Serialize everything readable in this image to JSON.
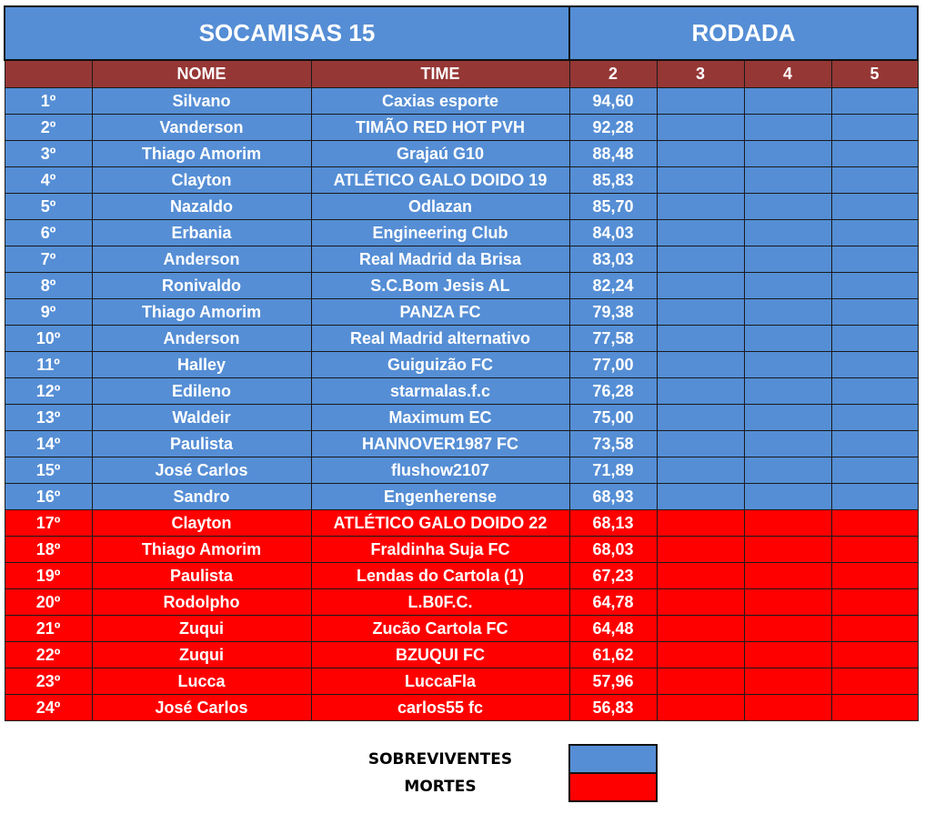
{
  "title": "SOCAMISAS 15",
  "rodada_label": "RODADA",
  "headers": [
    "",
    "NOME",
    "TIME",
    "2",
    "3",
    "4",
    "5"
  ],
  "colors": {
    "survivor": "#558ed5",
    "death": "#ff0000",
    "header": "#953735"
  },
  "rows": [
    [
      "1º",
      "Silvano",
      "Caxias esporte",
      "94,60"
    ],
    [
      "2º",
      "Vanderson",
      "TIMÃO RED HOT PVH",
      "92,28"
    ],
    [
      "3º",
      "Thiago Amorim",
      "Grajaú G10",
      "88,48"
    ],
    [
      "4º",
      "Clayton",
      "ATLÉTICO GALO DOIDO 19",
      "85,83"
    ],
    [
      "5º",
      "Nazaldo",
      "Odlazan",
      "85,70"
    ],
    [
      "6º",
      "Erbania",
      "Engineering Club",
      "84,03"
    ],
    [
      "7º",
      "Anderson",
      "Real Madrid da Brisa",
      "83,03"
    ],
    [
      "8º",
      "Ronivaldo",
      "S.C.Bom Jesis AL",
      "82,24"
    ],
    [
      "9º",
      "Thiago Amorim",
      "PANZA FC",
      "79,38"
    ],
    [
      "10º",
      "Anderson",
      "Real Madrid alternativo",
      "77,58"
    ],
    [
      "11º",
      "Halley",
      "Guiguizão FC",
      "77,00"
    ],
    [
      "12º",
      "Edileno",
      "starmalas.f.c",
      "76,28"
    ],
    [
      "13º",
      "Waldeir",
      "Maximum EC",
      "75,00"
    ],
    [
      "14º",
      "Paulista",
      "HANNOVER1987 FC",
      "73,58"
    ],
    [
      "15º",
      "José Carlos",
      "flushow2107",
      "71,89"
    ],
    [
      "16º",
      "Sandro",
      "Engenherense",
      "68,93"
    ],
    [
      "17º",
      "Clayton",
      "ATLÉTICO GALO DOIDO 22",
      "68,13"
    ],
    [
      "18º",
      "Thiago Amorim",
      "Fraldinha Suja FC",
      "68,03"
    ],
    [
      "19º",
      "Paulista",
      "Lendas do Cartola (1)",
      "67,23"
    ],
    [
      "20º",
      "Rodolpho",
      "L.B0F.C.",
      "64,78"
    ],
    [
      "21º",
      "Zuqui",
      "Zucão Cartola FC",
      "64,48"
    ],
    [
      "22º",
      "Zuqui",
      "BZUQUI FC",
      "61,62"
    ],
    [
      "23º",
      "Lucca",
      "LuccaFla",
      "57,96"
    ],
    [
      "24º",
      "José Carlos",
      "carlos55 fc",
      "56,83"
    ]
  ],
  "survivor_count": 16,
  "legend": {
    "survivors": "SOBREVIVENTES",
    "deaths": "MORTES"
  }
}
